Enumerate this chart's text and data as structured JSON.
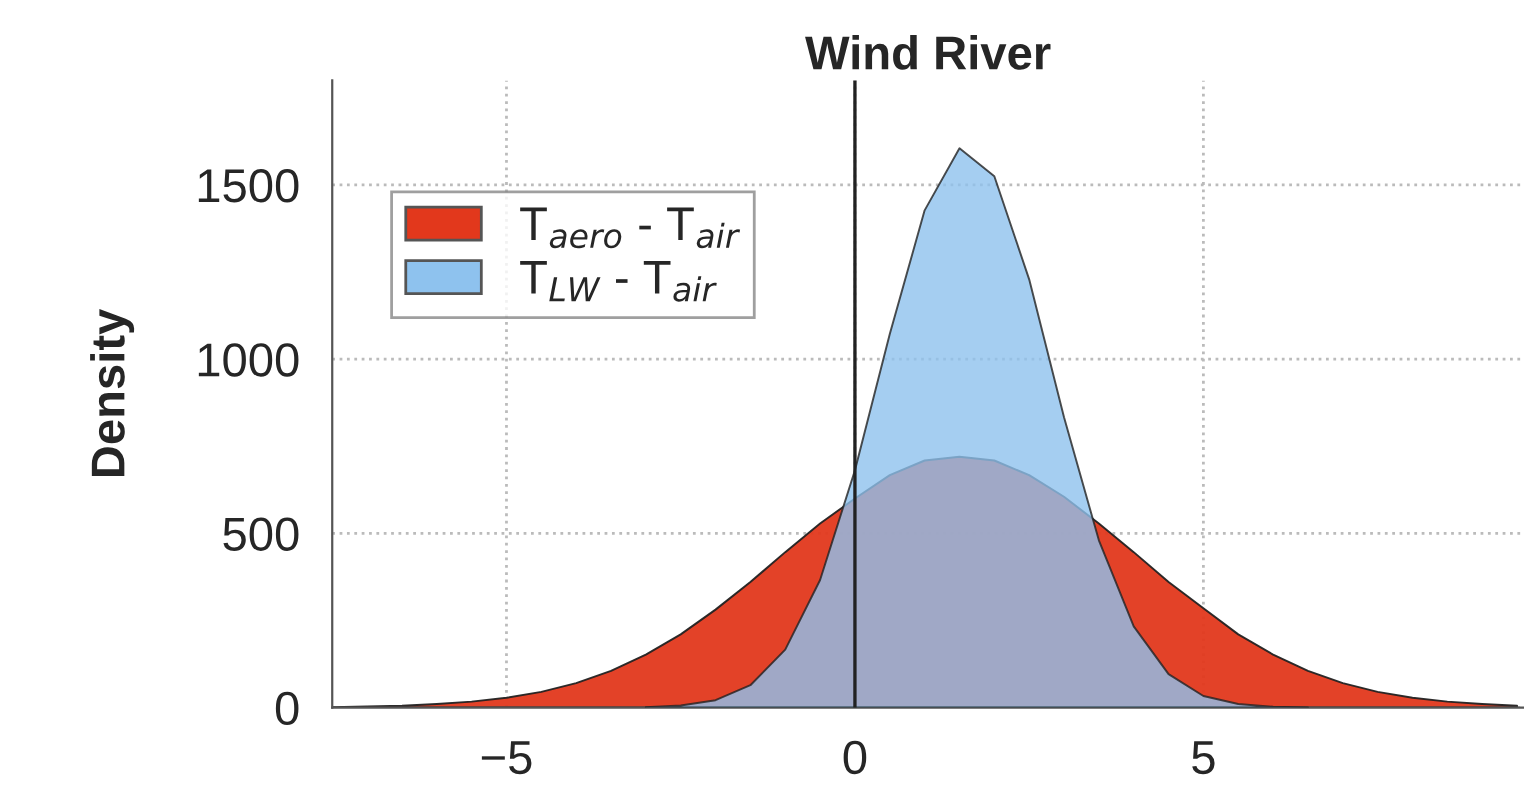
{
  "chart_data": {
    "type": "area",
    "title": "Wind River",
    "ylabel": "Density",
    "xlim": [
      -7.5,
      9.6
    ],
    "ylim": [
      0,
      1800
    ],
    "xticks": [
      -5,
      0,
      5
    ],
    "yticks": [
      0,
      500,
      1000,
      1500
    ],
    "grid": true,
    "legend": "top left",
    "ref_lines": [
      {
        "axis": "x",
        "value": 0,
        "color": "#222222"
      }
    ],
    "series": [
      {
        "name": "T$_{aero}$ - T$_{air}$",
        "color": "#e2381c",
        "x": [
          -7.5,
          -7,
          -6.5,
          -6,
          -5.5,
          -5,
          -4.5,
          -4,
          -3.5,
          -3,
          -2.5,
          -2,
          -1.5,
          -1,
          -0.5,
          0,
          0.5,
          1,
          1.5,
          2,
          2.5,
          3,
          3.5,
          4,
          4.5,
          5,
          5.5,
          6,
          6.5,
          7,
          7.5,
          8,
          8.5,
          9,
          9.5
        ],
        "values": [
          1,
          3,
          5,
          10,
          17,
          28,
          45,
          70,
          105,
          152,
          210,
          281,
          360,
          446,
          528,
          600,
          667,
          709,
          720,
          709,
          667,
          605,
          528,
          446,
          360,
          285,
          210,
          152,
          105,
          70,
          45,
          28,
          17,
          10,
          5
        ]
      },
      {
        "name": "T$_{LW}$ - T$_{air}$",
        "color": "#8ec2ee",
        "x": [
          -3,
          -2.5,
          -2,
          -1.5,
          -1,
          -0.5,
          0,
          0.5,
          1,
          1.5,
          2,
          2.5,
          3,
          3.5,
          4,
          4.5,
          5,
          5.5,
          6,
          6.5
        ],
        "values": [
          1,
          6,
          21,
          64,
          166,
          366,
          681,
          1072,
          1427,
          1605,
          1525,
          1229,
          833,
          480,
          233,
          96,
          33,
          10,
          2,
          0
        ]
      }
    ]
  }
}
